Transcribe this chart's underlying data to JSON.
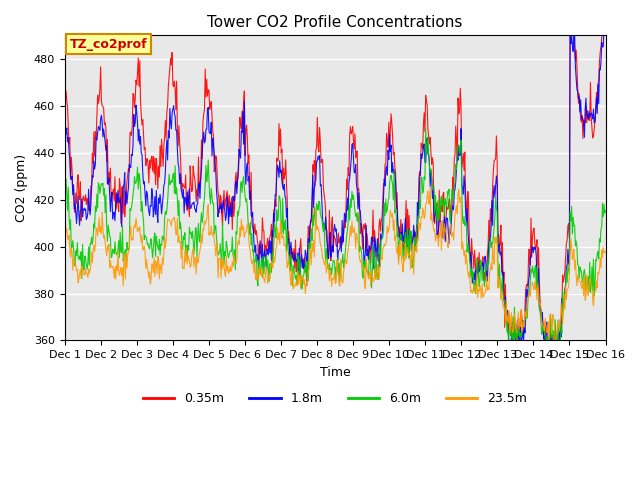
{
  "title": "Tower CO2 Profile Concentrations",
  "xlabel": "Time",
  "ylabel": "CO2 (ppm)",
  "ylim": [
    360,
    490
  ],
  "yticks": [
    360,
    380,
    400,
    420,
    440,
    460,
    480
  ],
  "colors": {
    "0.35m": "#ff0000",
    "1.8m": "#0000ff",
    "6.0m": "#00cc00",
    "23.5m": "#ff9900"
  },
  "legend_label": "TZ_co2prof",
  "legend_label_color": "#cc0000",
  "legend_box_color": "#ffff99",
  "background_color": "#e8e8e8",
  "n_days": 15,
  "points_per_day": 48,
  "x_tick_labels": [
    "Dec 1",
    "Dec 2",
    "Dec 3",
    "Dec 4",
    "Dec 5",
    "Dec 6",
    "Dec 7",
    "Dec 8",
    "Dec 9",
    "Dec 10",
    "Dec 11",
    "Dec 12",
    "Dec 13",
    "Dec 14",
    "Dec 15",
    "Dec 16"
  ],
  "base_red": [
    433,
    435,
    448,
    440,
    432,
    415,
    408,
    418,
    415,
    420,
    430,
    408,
    378,
    374,
    470,
    420
  ],
  "base_blue": [
    428,
    430,
    430,
    432,
    428,
    410,
    406,
    412,
    410,
    416,
    420,
    403,
    375,
    372,
    468,
    413
  ],
  "base_green": [
    405,
    407,
    410,
    412,
    408,
    400,
    397,
    400,
    400,
    410,
    425,
    395,
    372,
    370,
    396,
    396
  ],
  "base_orange": [
    395,
    397,
    398,
    400,
    397,
    394,
    392,
    394,
    394,
    402,
    410,
    388,
    373,
    371,
    388,
    390
  ],
  "diurnal_amps": [
    22,
    18,
    14,
    9
  ],
  "noise_levels": [
    5,
    4,
    4,
    3
  ],
  "seeds": [
    101,
    202,
    303,
    404
  ]
}
